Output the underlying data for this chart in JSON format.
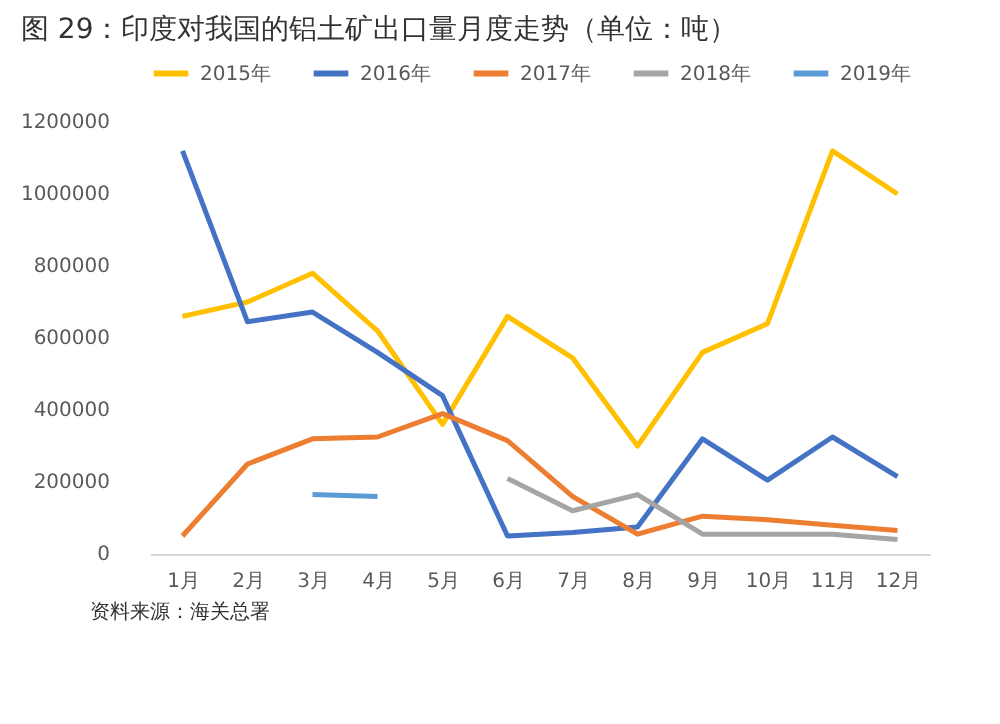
{
  "chart_data": {
    "type": "line",
    "title": "图 29：印度对我国的铝土矿出口量月度走势（单位：吨）",
    "categories": [
      "1月",
      "2月",
      "3月",
      "4月",
      "5月",
      "6月",
      "7月",
      "8月",
      "9月",
      "10月",
      "11月",
      "12月"
    ],
    "series": [
      {
        "name": "2015年",
        "color": "#ffc000",
        "values": [
          660000,
          700000,
          780000,
          620000,
          360000,
          660000,
          545000,
          300000,
          560000,
          640000,
          1120000,
          1000000
        ]
      },
      {
        "name": "2016年",
        "color": "#4472c4",
        "values": [
          1120000,
          645000,
          672000,
          560000,
          440000,
          50000,
          60000,
          75000,
          320000,
          205000,
          325000,
          215000
        ]
      },
      {
        "name": "2017年",
        "color": "#ed7d31",
        "values": [
          50000,
          250000,
          320000,
          325000,
          390000,
          315000,
          160000,
          55000,
          105000,
          95000,
          80000,
          65000
        ]
      },
      {
        "name": "2018年",
        "color": "#a5a5a5",
        "values": [
          null,
          null,
          null,
          null,
          null,
          210000,
          120000,
          165000,
          55000,
          55000,
          55000,
          40000
        ]
      },
      {
        "name": "2019年",
        "color": "#5b9bd5",
        "values": [
          null,
          null,
          165000,
          160000,
          null,
          null,
          null,
          null,
          null,
          null,
          null,
          null
        ]
      }
    ],
    "ylim": [
      0,
      1200000
    ],
    "yticks": [
      0,
      200000,
      400000,
      600000,
      800000,
      1000000,
      1200000
    ],
    "grid": false,
    "legend": "top",
    "marker": "none",
    "line_style": "solid",
    "annotations": [
      "资料来源：海关总署"
    ]
  }
}
